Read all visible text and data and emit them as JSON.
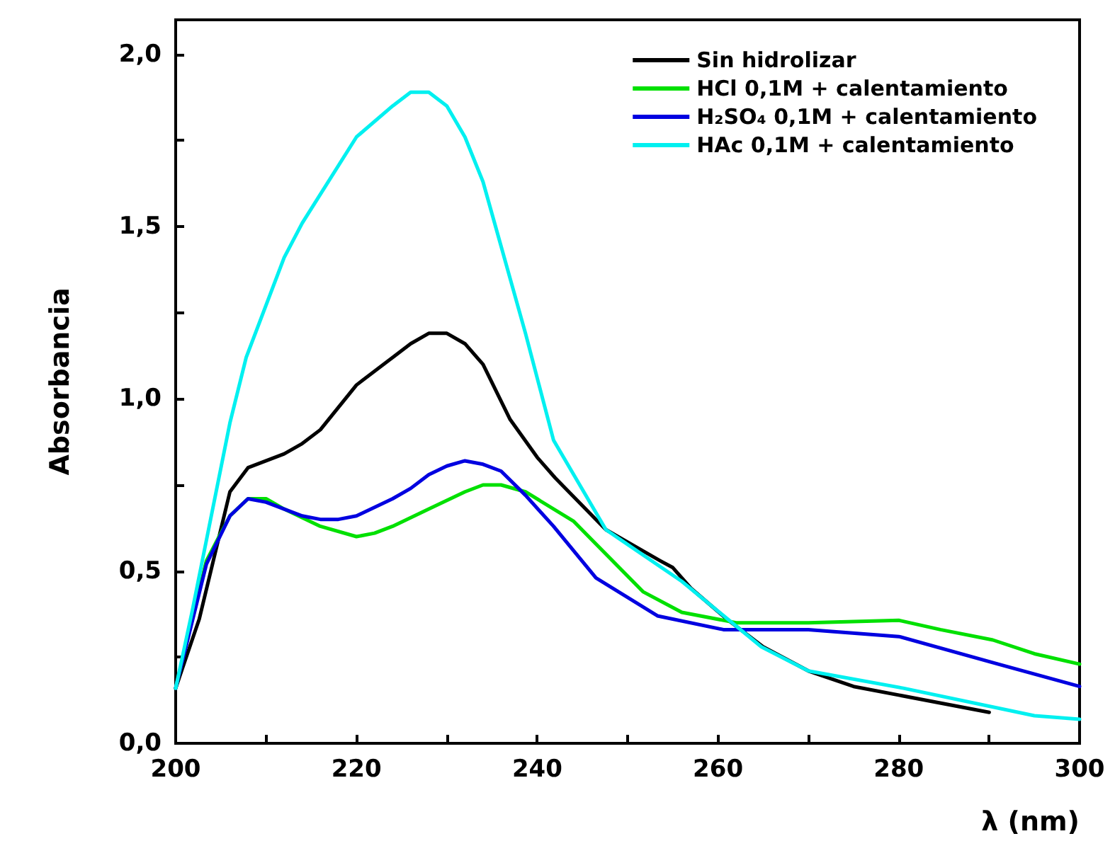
{
  "chart_data": {
    "type": "line",
    "xlabel": "λ (nm)",
    "ylabel": "Absorbancia",
    "xlim": [
      200,
      300
    ],
    "ylim": [
      0,
      2.1
    ],
    "xticks": [
      200,
      {
        "value": 210,
        "label": null
      },
      220,
      {
        "value": 230,
        "label": null
      },
      240,
      {
        "value": 250,
        "label": null
      },
      260,
      {
        "value": 270,
        "label": null
      },
      280,
      {
        "value": 290,
        "label": null
      },
      300
    ],
    "yticks": [
      {
        "value": 0,
        "label": "0,0"
      },
      {
        "value": 0.25,
        "label": null
      },
      {
        "value": 0.5,
        "label": "0,5"
      },
      {
        "value": 0.75,
        "label": null
      },
      {
        "value": 1,
        "label": "1,0"
      },
      {
        "value": 1.25,
        "label": null
      },
      {
        "value": 1.5,
        "label": "1,5"
      },
      {
        "value": 1.75,
        "label": null
      },
      {
        "value": 2,
        "label": "2,0"
      }
    ],
    "legend": "top right",
    "grid": false,
    "marker": "none",
    "line_style": "solid",
    "series": [
      {
        "name": "Sin hidrolizar",
        "color": "#000000",
        "x": [
          200,
          202.6,
          206,
          208,
          212,
          214,
          216,
          220,
          224,
          226,
          228,
          230,
          232,
          234,
          237,
          240,
          242,
          247.6,
          253.6,
          255,
          257,
          261,
          265,
          270,
          275,
          290
        ],
        "values": [
          0.16,
          0.36,
          0.73,
          0.8,
          0.84,
          0.87,
          0.91,
          1.04,
          1.12,
          1.16,
          1.19,
          1.19,
          1.16,
          1.1,
          0.94,
          0.83,
          0.77,
          0.62,
          0.53,
          0.51,
          0.45,
          0.36,
          0.28,
          0.21,
          0.165,
          0.09
        ]
      },
      {
        "name": "HCl 0,1M + calentamiento",
        "color": "#00e000",
        "x": [
          200,
          203.4,
          206,
          208,
          210,
          212,
          216,
          220,
          222,
          224,
          228,
          232,
          234,
          236,
          238.7,
          244,
          251.7,
          256,
          262,
          270,
          280,
          284.6,
          290.4,
          295,
          300
        ],
        "values": [
          0.16,
          0.53,
          0.66,
          0.71,
          0.71,
          0.68,
          0.63,
          0.6,
          0.61,
          0.63,
          0.68,
          0.73,
          0.75,
          0.75,
          0.73,
          0.645,
          0.44,
          0.38,
          0.35,
          0.35,
          0.357,
          0.33,
          0.3,
          0.26,
          0.23
        ]
      },
      {
        "name": "H₂SO₄ 0,1M + calentamiento",
        "color": "#0000e0",
        "x": [
          200,
          203.4,
          206,
          208,
          210,
          212,
          214,
          216,
          218,
          220,
          224,
          226,
          228,
          230,
          232,
          234,
          236,
          238.7,
          241.8,
          246.5,
          253.3,
          260.6,
          270,
          280,
          291,
          300
        ],
        "values": [
          0.16,
          0.52,
          0.66,
          0.71,
          0.7,
          0.68,
          0.66,
          0.65,
          0.65,
          0.66,
          0.71,
          0.74,
          0.78,
          0.805,
          0.82,
          0.81,
          0.79,
          0.72,
          0.63,
          0.48,
          0.37,
          0.33,
          0.33,
          0.31,
          0.23,
          0.165
        ]
      },
      {
        "name": "HAc 0,1M + calentamiento",
        "color": "#00f0f0",
        "x": [
          200,
          201.8,
          206,
          207.8,
          212,
          214,
          220,
          224,
          226,
          228,
          230,
          232,
          234,
          238.7,
          241.8,
          247.6,
          256,
          264.8,
          270,
          280.5,
          295,
          300
        ],
        "values": [
          0.16,
          0.38,
          0.93,
          1.12,
          1.41,
          1.51,
          1.76,
          1.85,
          1.89,
          1.89,
          1.85,
          1.76,
          1.63,
          1.19,
          0.88,
          0.62,
          0.47,
          0.28,
          0.21,
          0.16,
          0.08,
          0.07
        ]
      }
    ]
  }
}
